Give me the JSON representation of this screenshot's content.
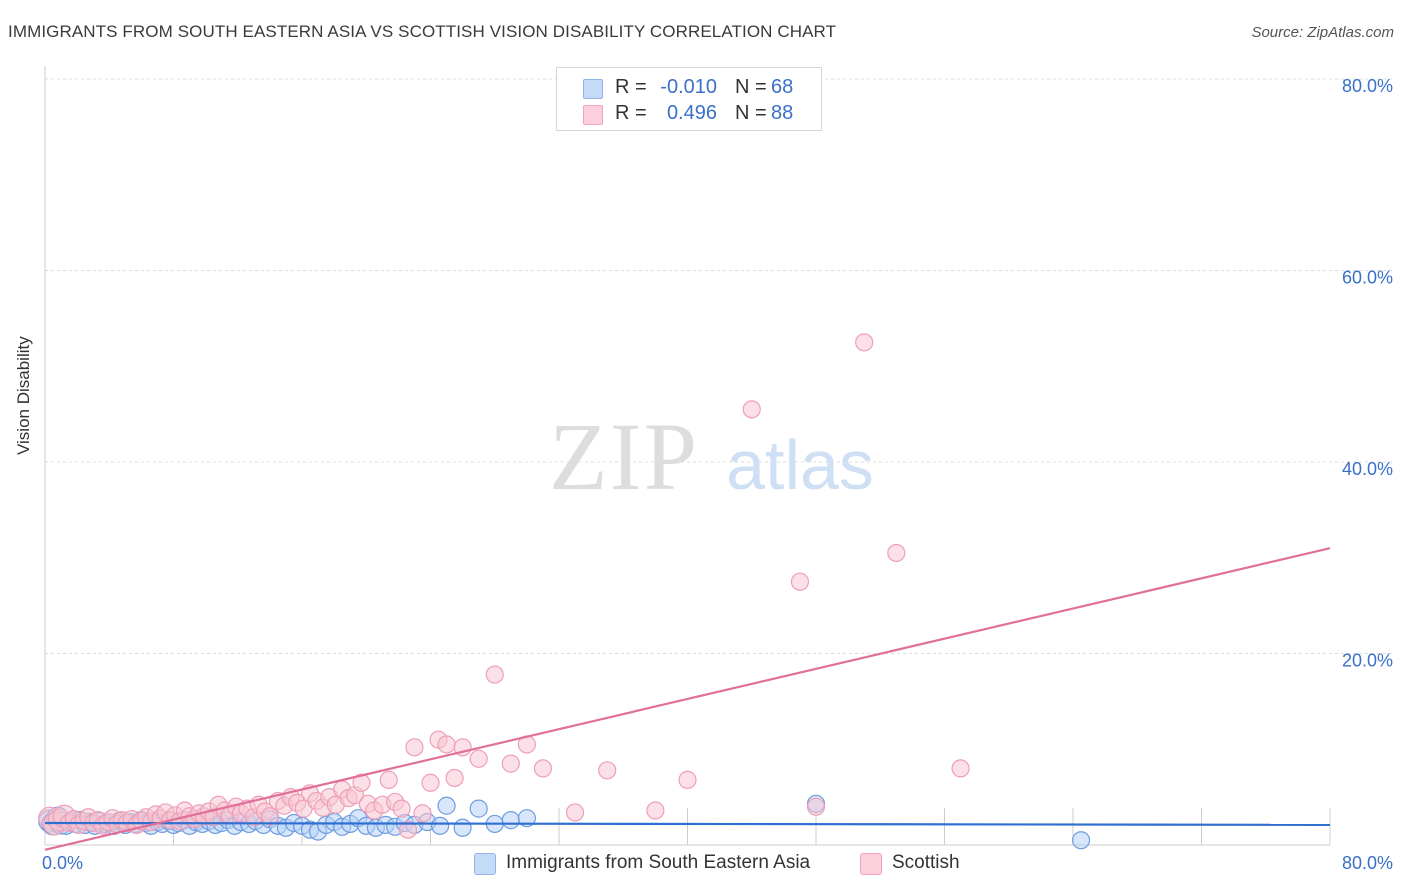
{
  "header": {
    "title": "IMMIGRANTS FROM SOUTH EASTERN ASIA VS SCOTTISH VISION DISABILITY CORRELATION CHART",
    "source": "Source: ZipAtlas.com"
  },
  "legend_top": [
    {
      "r_label": "R =",
      "r_value": "-0.010",
      "n_label": "N =",
      "n_value": "68",
      "color": "#a9c8f0"
    },
    {
      "r_label": "R =",
      "r_value": "0.496",
      "n_label": "N =",
      "n_value": "88",
      "color": "#f6b8cb"
    }
  ],
  "legend_bottom": [
    {
      "label": "Immigrants from South Eastern Asia",
      "color": "#b7d2f5"
    },
    {
      "label": "Scottish",
      "color": "#f8c6d4"
    }
  ],
  "watermark": {
    "zip": "ZIP",
    "atlas": "atlas"
  },
  "chart_data": {
    "type": "scatter",
    "title": "IMMIGRANTS FROM SOUTH EASTERN ASIA VS SCOTTISH VISION DISABILITY CORRELATION CHART",
    "xlabel": "",
    "ylabel": "Vision Disability",
    "xlim": [
      0,
      80
    ],
    "ylim": [
      0,
      80
    ],
    "x_tick_labels": [
      "0.0%",
      "80.0%"
    ],
    "y_tick_labels": [
      "20.0%",
      "40.0%",
      "60.0%",
      "80.0%"
    ],
    "y_ticks": [
      20,
      40,
      60,
      80
    ],
    "grid": "horizontal dashed",
    "legend_position": "bottom",
    "colors": {
      "blue": "#3a70c9",
      "blue_fill": "#a9c8f0",
      "pink": "#e0709a",
      "pink_fill": "#f6b8cb"
    },
    "series": [
      {
        "name": "Immigrants from South Eastern Asia",
        "color": "#3a70c9",
        "trend": {
          "x": [
            0,
            80
          ],
          "y": [
            2.3,
            2.1
          ]
        },
        "points": [
          [
            0.3,
            2.5
          ],
          [
            0.5,
            2.2
          ],
          [
            0.8,
            2.8
          ],
          [
            1.0,
            2.3
          ],
          [
            1.3,
            2.0
          ],
          [
            1.6,
            2.5
          ],
          [
            1.9,
            2.2
          ],
          [
            2.2,
            2.6
          ],
          [
            2.5,
            2.1
          ],
          [
            2.8,
            2.4
          ],
          [
            3.1,
            2.0
          ],
          [
            3.4,
            2.5
          ],
          [
            3.7,
            2.2
          ],
          [
            4.0,
            2.3
          ],
          [
            4.3,
            2.0
          ],
          [
            4.6,
            2.5
          ],
          [
            5.0,
            2.1
          ],
          [
            5.3,
            2.4
          ],
          [
            5.6,
            2.2
          ],
          [
            6.0,
            2.6
          ],
          [
            6.3,
            2.3
          ],
          [
            6.6,
            2.0
          ],
          [
            7.0,
            2.4
          ],
          [
            7.3,
            2.2
          ],
          [
            7.7,
            2.5
          ],
          [
            8.0,
            2.1
          ],
          [
            8.3,
            2.3
          ],
          [
            8.7,
            2.6
          ],
          [
            9.0,
            2.0
          ],
          [
            9.4,
            2.4
          ],
          [
            9.8,
            2.2
          ],
          [
            10.2,
            2.5
          ],
          [
            10.6,
            2.1
          ],
          [
            11.0,
            2.3
          ],
          [
            11.4,
            2.6
          ],
          [
            11.8,
            2.0
          ],
          [
            12.2,
            2.4
          ],
          [
            12.7,
            2.2
          ],
          [
            13.1,
            2.5
          ],
          [
            13.6,
            2.1
          ],
          [
            14.0,
            2.7
          ],
          [
            14.5,
            2.0
          ],
          [
            15.0,
            1.8
          ],
          [
            15.5,
            2.3
          ],
          [
            16.0,
            2.0
          ],
          [
            16.5,
            1.6
          ],
          [
            17.0,
            1.4
          ],
          [
            17.5,
            2.1
          ],
          [
            18.0,
            2.4
          ],
          [
            18.5,
            1.9
          ],
          [
            19.0,
            2.2
          ],
          [
            19.5,
            2.8
          ],
          [
            20.0,
            2.0
          ],
          [
            20.6,
            1.8
          ],
          [
            21.2,
            2.1
          ],
          [
            21.8,
            1.9
          ],
          [
            22.4,
            2.3
          ],
          [
            23.0,
            2.1
          ],
          [
            23.8,
            2.4
          ],
          [
            24.6,
            2.0
          ],
          [
            25.0,
            4.1
          ],
          [
            26.0,
            1.8
          ],
          [
            27.0,
            3.8
          ],
          [
            28.0,
            2.2
          ],
          [
            29.0,
            2.6
          ],
          [
            30.0,
            2.8
          ],
          [
            48.0,
            4.3
          ],
          [
            64.5,
            0.5
          ]
        ]
      },
      {
        "name": "Scottish",
        "color": "#e0709a",
        "trend": {
          "x": [
            0,
            80
          ],
          "y": [
            -0.5,
            31.0
          ]
        },
        "points": [
          [
            0.3,
            2.8
          ],
          [
            0.6,
            2.2
          ],
          [
            0.9,
            2.6
          ],
          [
            1.2,
            3.0
          ],
          [
            1.5,
            2.3
          ],
          [
            1.8,
            2.7
          ],
          [
            2.1,
            2.1
          ],
          [
            2.4,
            2.5
          ],
          [
            2.7,
            2.9
          ],
          [
            3.0,
            2.3
          ],
          [
            3.3,
            2.6
          ],
          [
            3.6,
            2.0
          ],
          [
            3.9,
            2.4
          ],
          [
            4.2,
            2.8
          ],
          [
            4.5,
            2.2
          ],
          [
            4.8,
            2.6
          ],
          [
            5.1,
            2.3
          ],
          [
            5.4,
            2.7
          ],
          [
            5.7,
            2.1
          ],
          [
            6.0,
            2.5
          ],
          [
            6.3,
            2.9
          ],
          [
            6.6,
            2.4
          ],
          [
            6.9,
            3.2
          ],
          [
            7.2,
            2.8
          ],
          [
            7.5,
            3.4
          ],
          [
            7.8,
            2.6
          ],
          [
            8.1,
            3.1
          ],
          [
            8.4,
            2.5
          ],
          [
            8.7,
            3.6
          ],
          [
            9.0,
            3.0
          ],
          [
            9.3,
            2.7
          ],
          [
            9.6,
            3.3
          ],
          [
            9.9,
            3.0
          ],
          [
            10.2,
            3.5
          ],
          [
            10.5,
            2.9
          ],
          [
            10.8,
            4.2
          ],
          [
            11.2,
            3.6
          ],
          [
            11.5,
            3.1
          ],
          [
            11.9,
            4.0
          ],
          [
            12.2,
            3.3
          ],
          [
            12.6,
            3.8
          ],
          [
            13.0,
            2.9
          ],
          [
            13.3,
            4.2
          ],
          [
            13.7,
            3.5
          ],
          [
            14.0,
            3.0
          ],
          [
            14.5,
            4.6
          ],
          [
            14.9,
            4.1
          ],
          [
            15.3,
            5.0
          ],
          [
            15.7,
            4.4
          ],
          [
            16.1,
            3.8
          ],
          [
            16.5,
            5.4
          ],
          [
            16.9,
            4.6
          ],
          [
            17.3,
            3.9
          ],
          [
            17.7,
            5.0
          ],
          [
            18.1,
            4.2
          ],
          [
            18.5,
            5.8
          ],
          [
            18.9,
            4.9
          ],
          [
            19.3,
            5.2
          ],
          [
            19.7,
            6.5
          ],
          [
            20.1,
            4.3
          ],
          [
            20.5,
            3.6
          ],
          [
            21.0,
            4.2
          ],
          [
            21.4,
            6.8
          ],
          [
            21.8,
            4.5
          ],
          [
            22.2,
            3.8
          ],
          [
            22.6,
            1.6
          ],
          [
            23.0,
            10.2
          ],
          [
            23.5,
            3.3
          ],
          [
            24.0,
            6.5
          ],
          [
            24.5,
            11.0
          ],
          [
            25.0,
            10.5
          ],
          [
            25.5,
            7.0
          ],
          [
            26.0,
            10.2
          ],
          [
            27.0,
            9.0
          ],
          [
            28.0,
            17.8
          ],
          [
            29.0,
            8.5
          ],
          [
            30.0,
            10.5
          ],
          [
            31.0,
            8.0
          ],
          [
            33.0,
            3.4
          ],
          [
            35.0,
            7.8
          ],
          [
            38.0,
            3.6
          ],
          [
            40.0,
            6.8
          ],
          [
            44.0,
            45.5
          ],
          [
            47.0,
            27.5
          ],
          [
            48.0,
            4.0
          ],
          [
            51.0,
            52.5
          ],
          [
            53.0,
            30.5
          ],
          [
            57.0,
            8.0
          ]
        ]
      }
    ]
  }
}
